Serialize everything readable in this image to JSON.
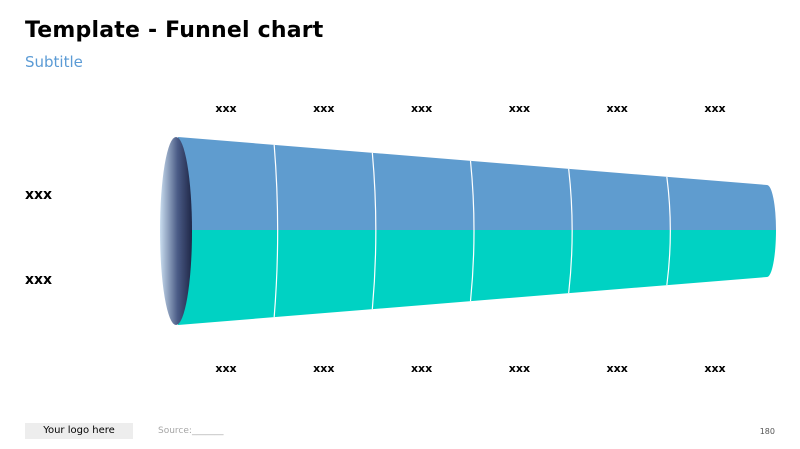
{
  "title": "Template - Funnel chart",
  "subtitle": "Subtitle",
  "footer": {
    "logo": "Your logo here",
    "source": "Source:_______",
    "page_number": "180"
  },
  "colors": {
    "top_band": "#5f9ccf",
    "bottom_band": "#00d2c3",
    "mouth_dark": "#1f2747",
    "mouth_light": "#c9ddef",
    "divider": "#ffffff"
  },
  "chart_data": {
    "type": "funnel",
    "title": "",
    "stages": 6,
    "top_labels": [
      "xxx",
      "xxx",
      "xxx",
      "xxx",
      "xxx",
      "xxx"
    ],
    "bottom_labels": [
      "xxx",
      "xxx",
      "xxx",
      "xxx",
      "xxx",
      "xxx"
    ],
    "series": [
      {
        "label": "xxx",
        "color": "#5f9ccf"
      },
      {
        "label": "xxx",
        "color": "#00d2c3"
      }
    ]
  }
}
